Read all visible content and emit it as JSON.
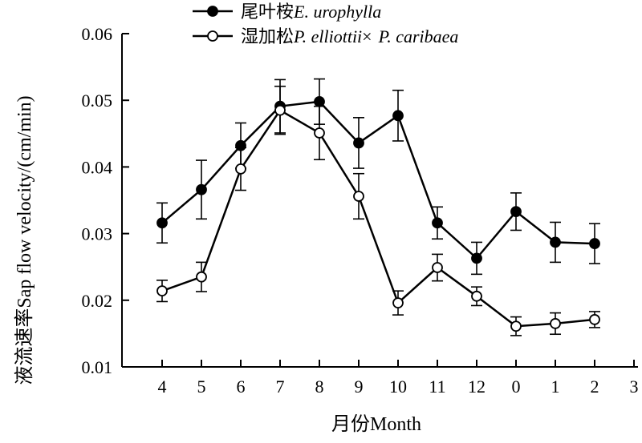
{
  "chart_data": {
    "type": "line",
    "title": "",
    "xlabel": "月份Month",
    "ylabel": "液流速率Sap flow velocity/(cm/min)",
    "x_ticks": [
      "4",
      "5",
      "6",
      "7",
      "8",
      "9",
      "10",
      "11",
      "12",
      "0",
      "1",
      "2",
      "3"
    ],
    "categories": [
      "4",
      "5",
      "6",
      "7",
      "8",
      "9",
      "10",
      "11",
      "12",
      "0",
      "1",
      "2"
    ],
    "y_ticks": [
      "0.01",
      "0.02",
      "0.03",
      "0.04",
      "0.05",
      "0.06"
    ],
    "ylim": [
      0.01,
      0.06
    ],
    "grid": false,
    "legend_position": "top-left",
    "series": [
      {
        "name": "尾叶桉",
        "name_italic": "E. urophylla",
        "marker": "filled-circle",
        "color": "#000000",
        "values": [
          0.0316,
          0.0366,
          0.0432,
          0.0491,
          0.0498,
          0.0436,
          0.0477,
          0.0316,
          0.0263,
          0.0333,
          0.0287,
          0.0285
        ],
        "errors": [
          0.003,
          0.0044,
          0.0034,
          0.004,
          0.0034,
          0.0038,
          0.0038,
          0.0024,
          0.0024,
          0.0028,
          0.003,
          0.003
        ]
      },
      {
        "name": "湿加松",
        "name_italic": "P. elliottii",
        "name_suffix": "×",
        "name_italic2": "P. caribaea",
        "marker": "open-circle",
        "color": "#000000",
        "values": [
          0.0214,
          0.0235,
          0.0397,
          0.0485,
          0.0451,
          0.0356,
          0.0196,
          0.0249,
          0.0206,
          0.0161,
          0.0165,
          0.0171
        ],
        "errors": [
          0.0016,
          0.0022,
          0.0032,
          0.0036,
          0.004,
          0.0034,
          0.0018,
          0.002,
          0.0014,
          0.0014,
          0.0016,
          0.0012
        ]
      }
    ]
  }
}
